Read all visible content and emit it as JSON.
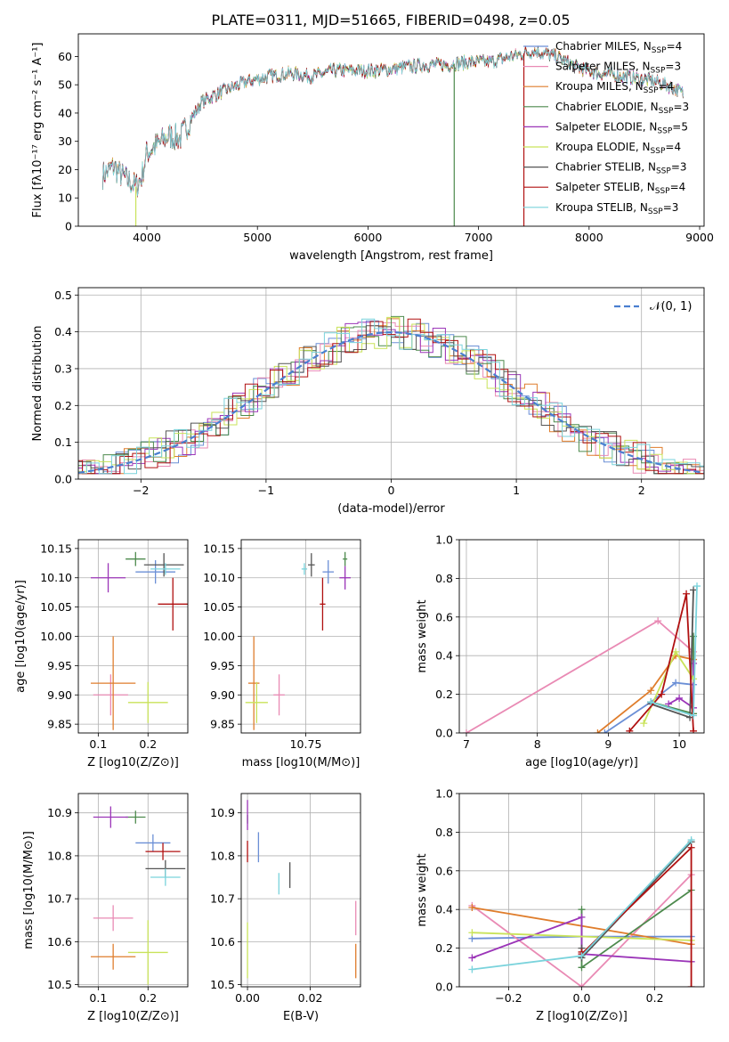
{
  "figure_title": "PLATE=0311, MJD=51665, FIBERID=0498, z=0.05",
  "colors": {
    "Chabrier MILES": "#6b8fd6",
    "Salpeter MILES": "#e98ab4",
    "Kroupa MILES": "#df7d2c",
    "Chabrier ELODIE": "#4d8a4d",
    "Salpeter ELODIE": "#9b35b8",
    "Kroupa ELODIE": "#c9e35a",
    "Chabrier STELIB": "#555555",
    "Salpeter STELIB": "#b01010",
    "Kroupa STELIB": "#7ad3dc"
  },
  "chart_data": [
    {
      "id": "spectrum",
      "type": "line",
      "title": "PLATE=0311, MJD=51665, FIBERID=0498, z=0.05",
      "xlabel": "wavelength [Angstrom, rest frame]",
      "ylabel": "Flux [fλ10⁻¹⁷ erg cm⁻² s⁻¹ A⁻¹]",
      "xlim": [
        3380,
        9040
      ],
      "ylim": [
        0,
        68
      ],
      "xticks": [
        4000,
        5000,
        6000,
        7000,
        8000,
        9000
      ],
      "yticks": [
        0,
        10,
        20,
        30,
        40,
        50,
        60
      ],
      "legend_position": "top-right",
      "continuum": {
        "x": [
          3600,
          3700,
          3800,
          3900,
          3950,
          4000,
          4100,
          4200,
          4300,
          4400,
          4500,
          4700,
          4900,
          5100,
          5300,
          5500,
          5700,
          5900,
          6100,
          6300,
          6500,
          6700,
          6900,
          7100,
          7300,
          7500,
          7700,
          7900,
          8100,
          8300,
          8500,
          8700,
          8850
        ],
        "y": [
          18,
          21,
          17,
          14,
          17,
          26,
          29,
          32,
          31,
          38,
          44,
          48,
          51,
          53,
          54,
          53,
          55,
          55,
          55,
          56,
          57,
          57,
          58,
          58,
          60,
          62,
          60,
          56,
          54,
          53,
          52,
          50,
          47
        ]
      },
      "dropouts": [
        {
          "x": 3900,
          "color": "#c9e35a"
        },
        {
          "x": 6780,
          "color": "#4d8a4d"
        },
        {
          "x": 7410,
          "color": "#b01010"
        }
      ],
      "series": [
        {
          "name": "Chabrier MILES, N_SSP=4",
          "label": "Chabrier MILES",
          "n": "4",
          "color": "#6b8fd6"
        },
        {
          "name": "Salpeter MILES, N_SSP=3",
          "label": "Salpeter MILES",
          "n": "3",
          "color": "#e98ab4"
        },
        {
          "name": "Kroupa MILES, N_SSP=4",
          "label": "Kroupa MILES",
          "n": "4",
          "color": "#df7d2c"
        },
        {
          "name": "Chabrier ELODIE, N_SSP=3",
          "label": "Chabrier ELODIE",
          "n": "3",
          "color": "#4d8a4d"
        },
        {
          "name": "Salpeter ELODIE, N_SSP=5",
          "label": "Salpeter ELODIE",
          "n": "5",
          "color": "#9b35b8"
        },
        {
          "name": "Kroupa ELODIE, N_SSP=4",
          "label": "Kroupa ELODIE",
          "n": "4",
          "color": "#c9e35a"
        },
        {
          "name": "Chabrier STELIB, N_SSP=3",
          "label": "Chabrier STELIB",
          "n": "3",
          "color": "#555555"
        },
        {
          "name": "Salpeter STELIB, N_SSP=4",
          "label": "Salpeter STELIB",
          "n": "4",
          "color": "#b01010"
        },
        {
          "name": "Kroupa STELIB, N_SSP=3",
          "label": "Kroupa STELIB",
          "n": "3",
          "color": "#7ad3dc"
        }
      ]
    },
    {
      "id": "residuals",
      "type": "histogram",
      "xlabel": "(data-model)/error",
      "ylabel": "Normed distribution",
      "xlim": [
        -2.5,
        2.5
      ],
      "ylim": [
        0,
        0.52
      ],
      "xticks": [
        -2,
        -1,
        0,
        1,
        2
      ],
      "yticks": [
        0.0,
        0.1,
        0.2,
        0.3,
        0.4,
        0.5
      ],
      "grid": true,
      "bin_width": 0.1,
      "legend": "𝒩(0, 1)",
      "legend_position": "top-right",
      "reference_curve": {
        "name": "N(0,1)",
        "mean": 0,
        "sigma": 1,
        "color": "#4a7fd0",
        "style": "dashed"
      }
    },
    {
      "id": "age_vs_Z",
      "type": "errorbar",
      "xlabel": "Z [log10(Z/Z⊙)]",
      "ylabel": "age  [log10(age/yr)]",
      "xlim": [
        0.06,
        0.28
      ],
      "ylim": [
        9.835,
        10.165
      ],
      "xticks": [
        0.1,
        0.2
      ],
      "yticks": [
        9.85,
        9.9,
        9.95,
        10.0,
        10.05,
        10.1,
        10.15
      ],
      "grid": true,
      "points": [
        {
          "model": "Chabrier MILES",
          "x": 0.215,
          "y": 10.11,
          "xerr": 0.04,
          "yerr": 0.02
        },
        {
          "model": "Salpeter MILES",
          "x": 0.125,
          "y": 9.9,
          "xerr": 0.035,
          "yerr": 0.035
        },
        {
          "model": "Kroupa MILES",
          "x": 0.13,
          "y": 9.92,
          "xerr": 0.045,
          "yerr": 0.08
        },
        {
          "model": "Chabrier ELODIE",
          "x": 0.175,
          "y": 10.132,
          "xerr": 0.02,
          "yerr": 0.012
        },
        {
          "model": "Salpeter ELODIE",
          "x": 0.12,
          "y": 10.1,
          "xerr": 0.035,
          "yerr": 0.025
        },
        {
          "model": "Kroupa ELODIE",
          "x": 0.2,
          "y": 9.887,
          "xerr": 0.04,
          "yerr": 0.035
        },
        {
          "model": "Chabrier STELIB",
          "x": 0.232,
          "y": 10.122,
          "xerr": 0.04,
          "yerr": 0.02
        },
        {
          "model": "Salpeter STELIB",
          "x": 0.25,
          "y": 10.055,
          "xerr": 0.03,
          "yerr": 0.045
        },
        {
          "model": "Kroupa STELIB",
          "x": 0.235,
          "y": 10.115,
          "xerr": 0.03,
          "yerr": 0.01
        }
      ]
    },
    {
      "id": "age_vs_mass",
      "type": "errorbar",
      "xlabel": "mass [log10(M/M⊙)]",
      "xlim": [
        10.52,
        10.945
      ],
      "ylim": [
        9.835,
        10.165
      ],
      "xticks": [
        10.5,
        10.75
      ],
      "yticks": [
        9.85,
        9.9,
        9.95,
        10.0,
        10.05,
        10.1,
        10.15
      ],
      "grid": true,
      "points": [
        {
          "model": "Chabrier MILES",
          "x": 10.83,
          "y": 10.11,
          "xerr": 0.02,
          "yerr": 0.02
        },
        {
          "model": "Salpeter MILES",
          "x": 10.655,
          "y": 9.9,
          "xerr": 0.02,
          "yerr": 0.035
        },
        {
          "model": "Kroupa MILES",
          "x": 10.565,
          "y": 9.92,
          "xerr": 0.02,
          "yerr": 0.08
        },
        {
          "model": "Chabrier ELODIE",
          "x": 10.89,
          "y": 10.132,
          "xerr": 0.008,
          "yerr": 0.012
        },
        {
          "model": "Salpeter ELODIE",
          "x": 10.89,
          "y": 10.1,
          "xerr": 0.02,
          "yerr": 0.02
        },
        {
          "model": "Kroupa ELODIE",
          "x": 10.575,
          "y": 9.887,
          "xerr": 0.04,
          "yerr": 0.035
        },
        {
          "model": "Chabrier STELIB",
          "x": 10.77,
          "y": 10.122,
          "xerr": 0.012,
          "yerr": 0.02
        },
        {
          "model": "Salpeter STELIB",
          "x": 10.81,
          "y": 10.055,
          "xerr": 0.01,
          "yerr": 0.045
        },
        {
          "model": "Kroupa STELIB",
          "x": 10.745,
          "y": 10.115,
          "xerr": 0.01,
          "yerr": 0.01
        }
      ]
    },
    {
      "id": "massweight_vs_age",
      "type": "line",
      "xlabel": "age  [log10(age/yr)]",
      "ylabel": "mass weight",
      "xlim": [
        6.9,
        10.35
      ],
      "ylim": [
        0,
        1
      ],
      "xticks": [
        7,
        8,
        9,
        10
      ],
      "yticks": [
        0.0,
        0.2,
        0.4,
        0.6,
        0.8,
        1.0
      ],
      "grid": true,
      "series": [
        {
          "model": "Chabrier MILES",
          "x": [
            8.95,
            9.6,
            9.95,
            10.2
          ],
          "y": [
            0,
            0.16,
            0.26,
            0.25
          ]
        },
        {
          "model": "Salpeter MILES",
          "x": [
            7.0,
            9.7,
            10.2
          ],
          "y": [
            0,
            0.58,
            0.42
          ]
        },
        {
          "model": "Kroupa MILES",
          "x": [
            8.85,
            9.6,
            9.95,
            10.2
          ],
          "y": [
            0,
            0.22,
            0.4,
            0.38
          ]
        },
        {
          "model": "Chabrier ELODIE",
          "x": [
            9.6,
            10.2,
            10.2
          ],
          "y": [
            0.16,
            0.1,
            0.5
          ]
        },
        {
          "model": "Salpeter ELODIE",
          "x": [
            9.85,
            10.0,
            10.2,
            10.2
          ],
          "y": [
            0.15,
            0.18,
            0.13,
            0.36
          ]
        },
        {
          "model": "Kroupa ELODIE",
          "x": [
            9.5,
            9.95,
            10.2
          ],
          "y": [
            0.05,
            0.42,
            0.28
          ]
        },
        {
          "model": "Chabrier STELIB",
          "x": [
            9.6,
            10.15,
            10.2
          ],
          "y": [
            0.15,
            0.08,
            0.74
          ]
        },
        {
          "model": "Salpeter STELIB",
          "x": [
            9.3,
            9.75,
            10.1,
            10.2
          ],
          "y": [
            0.01,
            0.2,
            0.72,
            0.01
          ]
        },
        {
          "model": "Kroupa STELIB",
          "x": [
            9.6,
            10.2,
            10.25
          ],
          "y": [
            0.16,
            0.09,
            0.76
          ]
        }
      ]
    },
    {
      "id": "mass_vs_Z",
      "type": "errorbar",
      "xlabel": "Z [log10(Z/Z⊙)]",
      "ylabel": "mass [log10(M/M⊙)]",
      "xlim": [
        0.06,
        0.28
      ],
      "ylim": [
        10.495,
        10.945
      ],
      "xticks": [
        0.1,
        0.2
      ],
      "yticks": [
        10.5,
        10.6,
        10.7,
        10.8,
        10.9
      ],
      "grid": true,
      "points": [
        {
          "model": "Chabrier MILES",
          "x": 0.21,
          "y": 10.83,
          "xerr": 0.035,
          "yerr": 0.02
        },
        {
          "model": "Salpeter MILES",
          "x": 0.13,
          "y": 10.655,
          "xerr": 0.04,
          "yerr": 0.03
        },
        {
          "model": "Kroupa MILES",
          "x": 0.13,
          "y": 10.565,
          "xerr": 0.045,
          "yerr": 0.03
        },
        {
          "model": "Chabrier ELODIE",
          "x": 0.175,
          "y": 10.89,
          "xerr": 0.02,
          "yerr": 0.015
        },
        {
          "model": "Salpeter ELODIE",
          "x": 0.125,
          "y": 10.89,
          "xerr": 0.035,
          "yerr": 0.025
        },
        {
          "model": "Kroupa ELODIE",
          "x": 0.2,
          "y": 10.575,
          "xerr": 0.04,
          "yerr": 0.075
        },
        {
          "model": "Chabrier STELIB",
          "x": 0.235,
          "y": 10.77,
          "xerr": 0.04,
          "yerr": 0.02
        },
        {
          "model": "Salpeter STELIB",
          "x": 0.23,
          "y": 10.81,
          "xerr": 0.035,
          "yerr": 0.02
        },
        {
          "model": "Kroupa STELIB",
          "x": 0.235,
          "y": 10.75,
          "xerr": 0.03,
          "yerr": 0.02
        }
      ]
    },
    {
      "id": "mass_vs_EBV",
      "type": "errorbar",
      "xlabel": "E(B-V)",
      "xlim": [
        -0.002,
        0.036
      ],
      "ylim": [
        10.495,
        10.945
      ],
      "xticks": [
        0.0,
        0.02
      ],
      "yticks": [
        10.5,
        10.6,
        10.7,
        10.8,
        10.9
      ],
      "grid": true,
      "points": [
        {
          "model": "Chabrier MILES",
          "x": 0.0035,
          "y": 10.82,
          "xerr": 0,
          "yerr": 0.035
        },
        {
          "model": "Salpeter MILES",
          "x": 0.0345,
          "y": 10.655,
          "xerr": 0,
          "yerr": 0.04
        },
        {
          "model": "Kroupa MILES",
          "x": 0.0345,
          "y": 10.555,
          "xerr": 0,
          "yerr": 0.04
        },
        {
          "model": "Chabrier ELODIE",
          "x": 0.0,
          "y": 10.885,
          "xerr": 0,
          "yerr": 0.01
        },
        {
          "model": "Salpeter ELODIE",
          "x": 0.0,
          "y": 10.895,
          "xerr": 0,
          "yerr": 0.035
        },
        {
          "model": "Kroupa ELODIE",
          "x": 0.0,
          "y": 10.58,
          "xerr": 0,
          "yerr": 0.065
        },
        {
          "model": "Chabrier STELIB",
          "x": 0.0135,
          "y": 10.755,
          "xerr": 0,
          "yerr": 0.03
        },
        {
          "model": "Salpeter STELIB",
          "x": 0.0,
          "y": 10.81,
          "xerr": 0,
          "yerr": 0.025
        },
        {
          "model": "Kroupa STELIB",
          "x": 0.01,
          "y": 10.735,
          "xerr": 0,
          "yerr": 0.025
        }
      ]
    },
    {
      "id": "massweight_vs_Z",
      "type": "line",
      "xlabel": "Z [log10(Z/Z⊙)]",
      "ylabel": "mass weight",
      "xlim": [
        -0.335,
        0.335
      ],
      "ylim": [
        0,
        1
      ],
      "xticks": [
        -0.2,
        0.0,
        0.2
      ],
      "yticks": [
        0.0,
        0.2,
        0.4,
        0.6,
        0.8,
        1.0
      ],
      "grid": true,
      "series": [
        {
          "model": "Chabrier MILES",
          "x": [
            -0.3,
            0.0,
            0.3
          ],
          "y": [
            0.25,
            0.26,
            0.26
          ]
        },
        {
          "model": "Salpeter MILES",
          "x": [
            -0.3,
            0.0,
            0.3
          ],
          "y": [
            0.42,
            0.0,
            0.58
          ]
        },
        {
          "model": "Kroupa MILES",
          "x": [
            -0.3,
            0.3
          ],
          "y": [
            0.41,
            0.22
          ]
        },
        {
          "model": "Chabrier ELODIE",
          "x": [
            0.0,
            0.0,
            0.3
          ],
          "y": [
            0.4,
            0.1,
            0.5
          ]
        },
        {
          "model": "Salpeter ELODIE",
          "x": [
            -0.3,
            0.0,
            0.0,
            0.3
          ],
          "y": [
            0.15,
            0.36,
            0.17,
            0.13
          ]
        },
        {
          "model": "Kroupa ELODIE",
          "x": [
            -0.3,
            0.3
          ],
          "y": [
            0.28,
            0.24
          ]
        },
        {
          "model": "Chabrier STELIB",
          "x": [
            0.0,
            0.0,
            0.3
          ],
          "y": [
            0.2,
            0.15,
            0.75
          ]
        },
        {
          "model": "Salpeter STELIB",
          "x": [
            0.0,
            0.0,
            0.3,
            0.3
          ],
          "y": [
            0.18,
            0.17,
            0.72,
            0.0
          ]
        },
        {
          "model": "Kroupa STELIB",
          "x": [
            -0.3,
            0.0,
            0.3
          ],
          "y": [
            0.09,
            0.16,
            0.76
          ]
        }
      ]
    }
  ]
}
